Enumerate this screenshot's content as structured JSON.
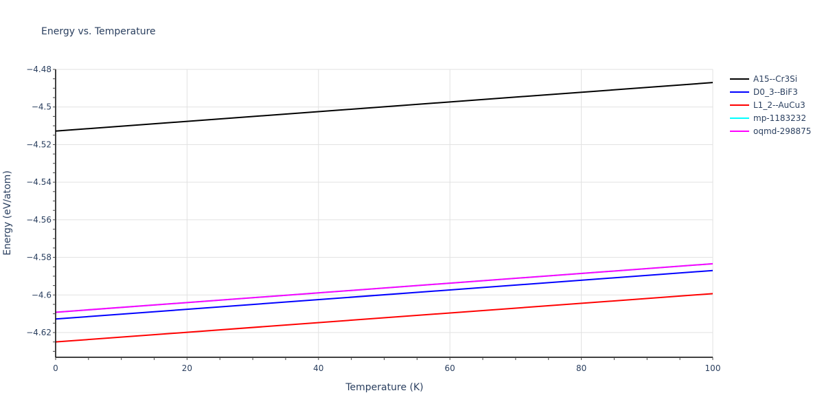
{
  "chart_data": {
    "type": "line",
    "title": "Energy vs. Temperature",
    "xlabel": "Temperature (K)",
    "ylabel": "Energy (eV/atom)",
    "xlim": [
      0,
      100
    ],
    "ylim": [
      -4.6315,
      -4.4795
    ],
    "x_ticks": [
      0,
      20,
      40,
      60,
      80,
      100
    ],
    "y_ticks": [
      -4.62,
      -4.6,
      -4.58,
      -4.56,
      -4.54,
      -4.52,
      -4.5,
      -4.48
    ],
    "y_tick_labels": [
      "−4.62",
      "−4.6",
      "−4.58",
      "−4.56",
      "−4.54",
      "−4.52",
      "−4.5",
      "−4.48"
    ],
    "x_tick_labels": [
      "0",
      "20",
      "40",
      "60",
      "80",
      "100"
    ],
    "grid": true,
    "legend_position": "right",
    "x": [
      0,
      100
    ],
    "series": [
      {
        "name": "A15--Cr3Si",
        "color": "#000000",
        "values": [
          -4.5128,
          -4.487
        ]
      },
      {
        "name": "D0_3--BiF3",
        "color": "#0000ff",
        "values": [
          -4.6128,
          -4.587
        ]
      },
      {
        "name": "L1_2--AuCu3",
        "color": "#ff0000",
        "values": [
          -4.625,
          -4.5993
        ]
      },
      {
        "name": "mp-1183232",
        "color": "#00ffff",
        "values": [
          -4.6092,
          -4.5834
        ]
      },
      {
        "name": "oqmd-298875",
        "color": "#ff00ff",
        "values": [
          -4.6092,
          -4.5834
        ]
      }
    ]
  }
}
